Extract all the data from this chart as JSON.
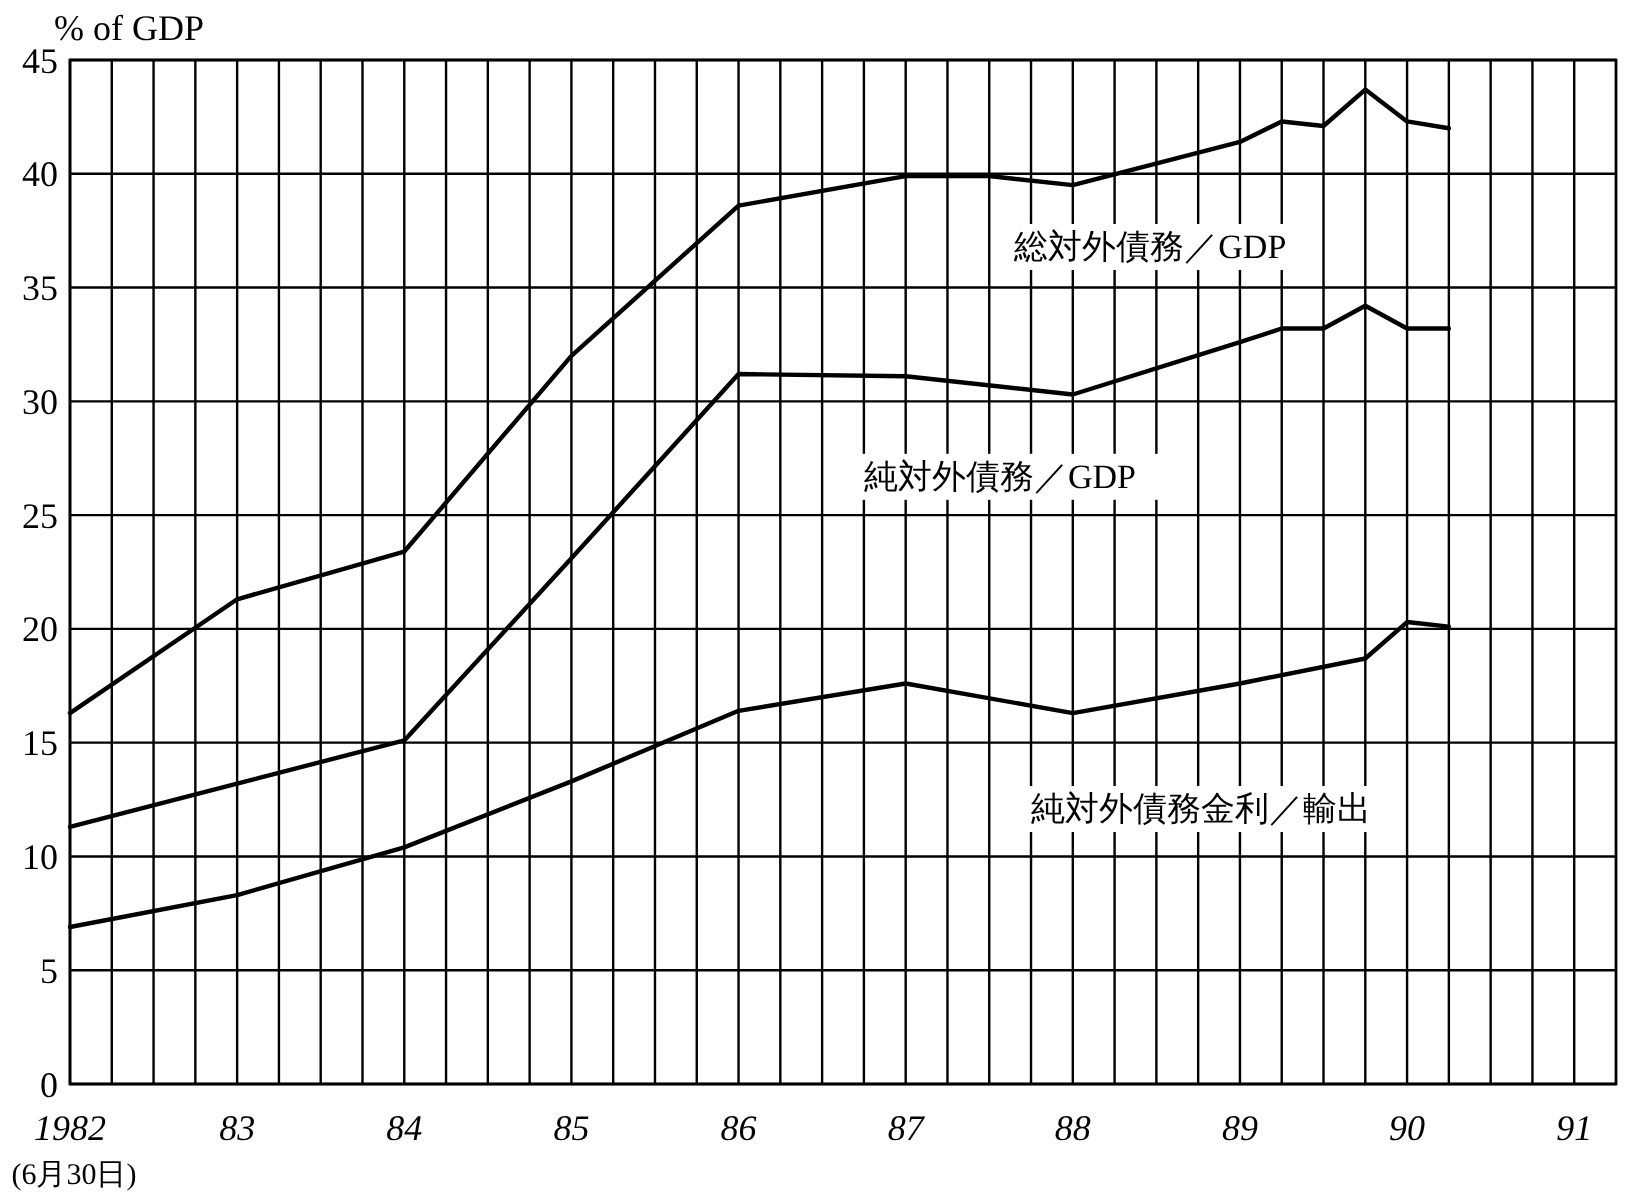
{
  "chart_data": {
    "type": "line",
    "ylabel": "% of GDP",
    "xlim": [
      1982,
      1991.25
    ],
    "xticks": [
      {
        "value": 1982,
        "label": "1982"
      },
      {
        "value": 1982.25,
        "label": null
      },
      {
        "value": 1982.5,
        "label": null
      },
      {
        "value": 1982.75,
        "label": null
      },
      {
        "value": 1983,
        "label": "83"
      },
      {
        "value": 1983.25,
        "label": null
      },
      {
        "value": 1983.5,
        "label": null
      },
      {
        "value": 1983.75,
        "label": null
      },
      {
        "value": 1984,
        "label": "84"
      },
      {
        "value": 1984.25,
        "label": null
      },
      {
        "value": 1984.5,
        "label": null
      },
      {
        "value": 1984.75,
        "label": null
      },
      {
        "value": 1985,
        "label": "85"
      },
      {
        "value": 1985.25,
        "label": null
      },
      {
        "value": 1985.5,
        "label": null
      },
      {
        "value": 1985.75,
        "label": null
      },
      {
        "value": 1986,
        "label": "86"
      },
      {
        "value": 1986.25,
        "label": null
      },
      {
        "value": 1986.5,
        "label": null
      },
      {
        "value": 1986.75,
        "label": null
      },
      {
        "value": 1987,
        "label": "87"
      },
      {
        "value": 1987.25,
        "label": null
      },
      {
        "value": 1987.5,
        "label": null
      },
      {
        "value": 1987.75,
        "label": null
      },
      {
        "value": 1988,
        "label": "88"
      },
      {
        "value": 1988.25,
        "label": null
      },
      {
        "value": 1988.5,
        "label": null
      },
      {
        "value": 1988.75,
        "label": null
      },
      {
        "value": 1989,
        "label": "89"
      },
      {
        "value": 1989.25,
        "label": null
      },
      {
        "value": 1989.5,
        "label": null
      },
      {
        "value": 1989.75,
        "label": null
      },
      {
        "value": 1990,
        "label": "90"
      },
      {
        "value": 1990.25,
        "label": null
      },
      {
        "value": 1990.5,
        "label": null
      },
      {
        "value": 1990.75,
        "label": null
      },
      {
        "value": 1991,
        "label": "91"
      }
    ],
    "ylim": [
      0,
      45
    ],
    "yticks": [
      0,
      5,
      10,
      15,
      20,
      25,
      30,
      35,
      40,
      45
    ],
    "grid": true,
    "marker": "none",
    "line_style": "solid",
    "annotations": [
      "(6月30日)"
    ],
    "series": [
      {
        "name": "総対外債務／GDP",
        "color": "#000000",
        "x": [
          1982,
          1983,
          1984,
          1985,
          1986,
          1987,
          1987.5,
          1988,
          1989,
          1989.25,
          1989.5,
          1989.75,
          1990,
          1990.25
        ],
        "values": [
          16.3,
          21.3,
          23.4,
          32.0,
          38.6,
          39.9,
          39.9,
          39.5,
          41.4,
          42.3,
          42.1,
          43.7,
          42.3,
          42.0
        ]
      },
      {
        "name": "純対外債務／GDP",
        "color": "#000000",
        "x": [
          1982,
          1983,
          1984,
          1985,
          1986,
          1987,
          1988,
          1989,
          1989.25,
          1989.5,
          1989.75,
          1990,
          1990.25
        ],
        "values": [
          11.3,
          13.2,
          15.1,
          23.1,
          31.2,
          31.1,
          30.3,
          32.6,
          33.2,
          33.2,
          34.2,
          33.2,
          33.2
        ]
      },
      {
        "name": "純対外債務金利／輸出",
        "color": "#000000",
        "x": [
          1982,
          1983,
          1984,
          1985,
          1986,
          1987,
          1988,
          1989,
          1989.75,
          1990,
          1990.25
        ],
        "values": [
          6.9,
          8.3,
          10.4,
          13.3,
          16.4,
          17.6,
          16.3,
          17.6,
          18.7,
          20.3,
          20.1
        ]
      }
    ]
  }
}
